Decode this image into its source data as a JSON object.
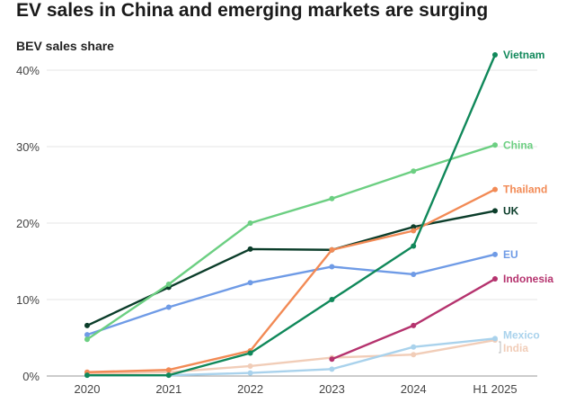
{
  "chart_data": {
    "type": "line",
    "title": "EV sales in China and emerging markets are surging",
    "subtitle": "BEV sales share",
    "x": [
      "2020",
      "2021",
      "2022",
      "2023",
      "2024",
      "H1 2025"
    ],
    "yticks": [
      "0%",
      "10%",
      "20%",
      "30%",
      "40%"
    ],
    "ylim": [
      0,
      44
    ],
    "grid": true,
    "legend_placement": "direct labels at line ends (right)",
    "series": [
      {
        "name": "Vietnam",
        "color": "#10885a",
        "values": [
          0.1,
          0.1,
          3.0,
          10.0,
          17.0,
          42.0
        ]
      },
      {
        "name": "China",
        "color": "#6ccf82",
        "values": [
          4.8,
          12.0,
          20.0,
          23.2,
          26.8,
          30.2
        ]
      },
      {
        "name": "Thailand",
        "color": "#f28a55",
        "values": [
          0.5,
          0.8,
          3.3,
          16.5,
          19.0,
          24.4
        ]
      },
      {
        "name": "UK",
        "color": "#0b3d2a",
        "values": [
          6.6,
          11.6,
          16.6,
          16.5,
          19.5,
          21.6
        ]
      },
      {
        "name": "EU",
        "color": "#6f9be6",
        "values": [
          5.4,
          9.0,
          12.2,
          14.3,
          13.3,
          15.9
        ]
      },
      {
        "name": "Indonesia",
        "color": "#b5336e",
        "values": [
          null,
          null,
          null,
          2.2,
          6.6,
          12.7
        ]
      },
      {
        "name": "Mexico",
        "color": "#a9d2ec",
        "values": [
          0.1,
          0.1,
          0.4,
          0.9,
          3.8,
          4.9
        ]
      },
      {
        "name": "India",
        "color": "#f1cdb8",
        "values": [
          0.3,
          0.5,
          1.3,
          2.4,
          2.8,
          4.7
        ]
      }
    ]
  }
}
